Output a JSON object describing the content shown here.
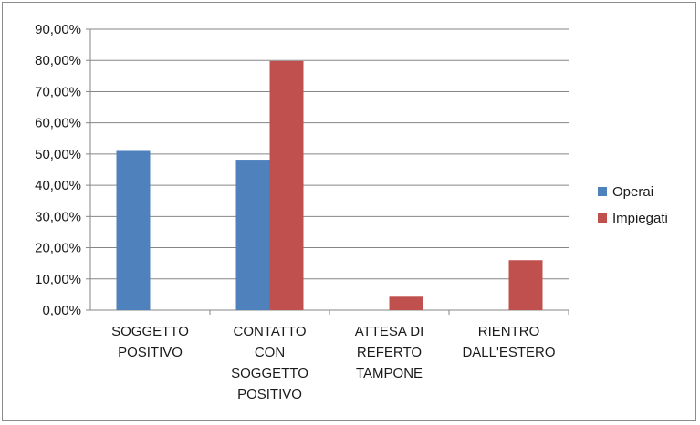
{
  "chart_data": {
    "type": "bar",
    "categories": [
      [
        "SOGGETTO",
        "POSITIVO"
      ],
      [
        "CONTATTO",
        "CON",
        "SOGGETTO",
        "POSITIVO"
      ],
      [
        "ATTESA DI",
        "REFERTO",
        "TAMPONE"
      ],
      [
        "RIENTRO",
        "DALL'ESTERO"
      ]
    ],
    "series": [
      {
        "name": "Operai",
        "values": [
          51.0,
          48.2,
          0,
          0
        ],
        "color": "#4f81bd"
      },
      {
        "name": "Impiegati",
        "values": [
          0,
          79.8,
          4.3,
          16.0
        ],
        "color": "#c0504d"
      }
    ],
    "ylim": [
      0,
      90
    ],
    "yticks": [
      "0,00%",
      "10,00%",
      "20,00%",
      "30,00%",
      "40,00%",
      "50,00%",
      "60,00%",
      "70,00%",
      "80,00%",
      "90,00%"
    ],
    "grid": true,
    "legend_position": "right",
    "gridline_color": "#868686"
  }
}
